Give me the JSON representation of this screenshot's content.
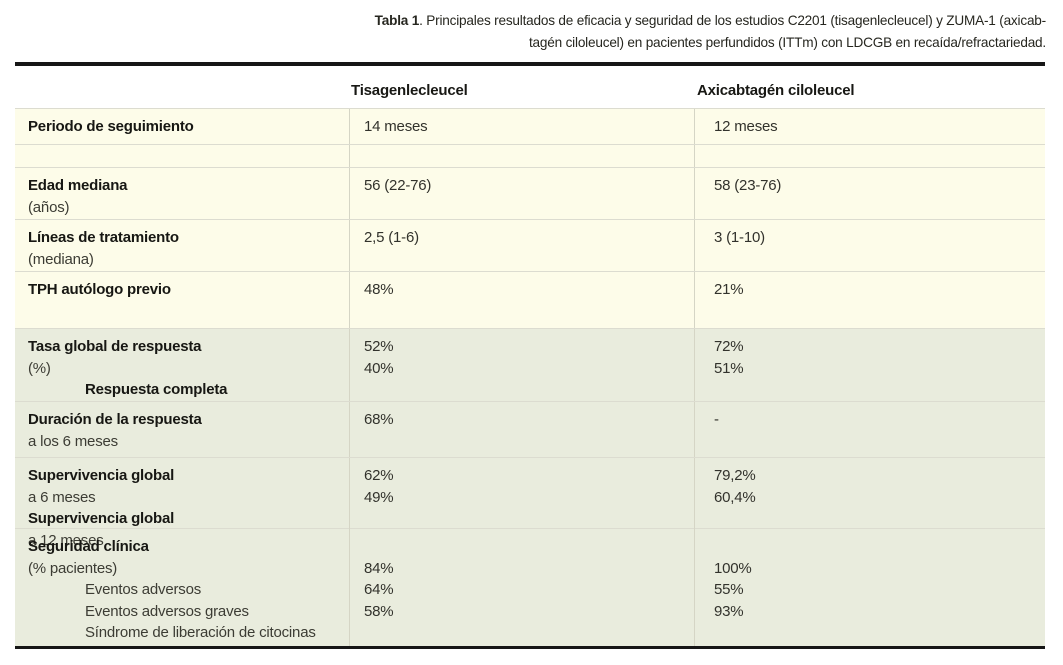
{
  "title": {
    "label": "Tabla 1",
    "line1_rest": ". Principales resultados de eficacia y seguridad de los estudios C2201 (tisagenlecleucel) y ZUMA-1 (axicab-",
    "line2": "tagén ciloleucel) en pacientes perfundidos (ITTm) con LDCGB en recaída/refractariedad."
  },
  "colors": {
    "cream": "#fdfce9",
    "green": "#e9ecdd",
    "sep": "#dcdcd0",
    "divider": "#d5d5c5",
    "border_dark": "#161616"
  },
  "table": {
    "headers": [
      "Tisagenlecleucel",
      "Axicabtagén ciloleucel"
    ],
    "rows": [
      {
        "label_lines": [
          {
            "indent": false,
            "segments": [
              {
                "text": "Periodo de seguimiento",
                "bold": true
              }
            ]
          }
        ],
        "tisagenlecleucel": [
          "14 meses"
        ],
        "axicabtagen": [
          "12 meses"
        ]
      },
      {
        "label_lines": [],
        "tisagenlecleucel": [],
        "axicabtagen": []
      },
      {
        "label_lines": [
          {
            "indent": false,
            "segments": [
              {
                "text": "Edad mediana",
                "bold": true
              },
              {
                "text": " (años)",
                "bold": false
              }
            ]
          }
        ],
        "tisagenlecleucel": [
          "56 (22-76)"
        ],
        "axicabtagen": [
          "58 (23-76)"
        ]
      },
      {
        "label_lines": [
          {
            "indent": false,
            "segments": [
              {
                "text": "Líneas de tratamiento",
                "bold": true
              },
              {
                "text": " (mediana)",
                "bold": false
              }
            ]
          }
        ],
        "tisagenlecleucel": [
          "2,5 (1-6)"
        ],
        "axicabtagen": [
          "3 (1-10)"
        ]
      },
      {
        "label_lines": [
          {
            "indent": false,
            "segments": [
              {
                "text": "TPH autólogo previo",
                "bold": true
              }
            ]
          }
        ],
        "tisagenlecleucel": [
          "48%"
        ],
        "axicabtagen": [
          "21%"
        ]
      },
      {
        "label_lines": [
          {
            "indent": false,
            "segments": [
              {
                "text": "Tasa global de respuesta",
                "bold": true
              },
              {
                "text": " (%)",
                "bold": false
              }
            ]
          },
          {
            "indent": true,
            "segments": [
              {
                "text": "Respuesta completa",
                "bold": true
              }
            ]
          }
        ],
        "tisagenlecleucel": [
          "52%",
          "40%"
        ],
        "axicabtagen": [
          "72%",
          "51%"
        ]
      },
      {
        "label_lines": [
          {
            "indent": false,
            "segments": [
              {
                "text": "Duración de la respuesta",
                "bold": true
              },
              {
                "text": " a los 6 meses",
                "bold": false
              }
            ]
          }
        ],
        "tisagenlecleucel": [
          "68%"
        ],
        "axicabtagen": [
          "-"
        ]
      },
      {
        "label_lines": [
          {
            "indent": false,
            "segments": [
              {
                "text": "Supervivencia global",
                "bold": true
              },
              {
                "text": " a 6 meses",
                "bold": false
              }
            ]
          },
          {
            "indent": false,
            "segments": [
              {
                "text": "Supervivencia global",
                "bold": true
              },
              {
                "text": " a 12 meses",
                "bold": false
              }
            ]
          }
        ],
        "tisagenlecleucel": [
          "62%",
          "49%"
        ],
        "axicabtagen": [
          "79,2%",
          "60,4%"
        ]
      },
      {
        "label_lines": [
          {
            "indent": false,
            "segments": [
              {
                "text": "Seguridad clínica",
                "bold": true
              },
              {
                "text": " (% pacientes)",
                "bold": false
              }
            ]
          },
          {
            "indent": true,
            "segments": [
              {
                "text": "Eventos adversos",
                "bold": false
              }
            ]
          },
          {
            "indent": true,
            "segments": [
              {
                "text": "Eventos adversos graves",
                "bold": false
              }
            ]
          },
          {
            "indent": true,
            "segments": [
              {
                "text": "Síndrome de liberación de citocinas",
                "bold": false
              }
            ]
          }
        ],
        "tisagenlecleucel": [
          "",
          "84%",
          "64%",
          "58%"
        ],
        "axicabtagen": [
          "",
          "100%",
          "55%",
          "93%"
        ]
      }
    ]
  },
  "chart_data": {
    "type": "table",
    "title": "Tabla 1. Principales resultados de eficacia y seguridad de los estudios C2201 (tisagenlecleucel) y ZUMA-1 (axicabtagén ciloleucel) en pacientes perfundidos (ITTm) con LDCGB en recaída/refractariedad.",
    "columns": [
      "",
      "Tisagenlecleucel",
      "Axicabtagén ciloleucel"
    ],
    "rows": [
      [
        "Periodo de seguimiento",
        "14 meses",
        "12 meses"
      ],
      [
        "Edad mediana (años)",
        "56 (22-76)",
        "58 (23-76)"
      ],
      [
        "Líneas de tratamiento (mediana)",
        "2,5 (1-6)",
        "3 (1-10)"
      ],
      [
        "TPH autólogo previo",
        "48%",
        "21%"
      ],
      [
        "Tasa global de respuesta (%)",
        "52%",
        "72%"
      ],
      [
        "Respuesta completa",
        "40%",
        "51%"
      ],
      [
        "Duración de la respuesta a los 6 meses",
        "68%",
        "-"
      ],
      [
        "Supervivencia global a 6 meses",
        "62%",
        "79,2%"
      ],
      [
        "Supervivencia global a 12 meses",
        "49%",
        "60,4%"
      ],
      [
        "Seguridad clínica (% pacientes): Eventos adversos",
        "84%",
        "100%"
      ],
      [
        "Seguridad clínica (% pacientes): Eventos adversos graves",
        "64%",
        "55%"
      ],
      [
        "Seguridad clínica (% pacientes): Síndrome de liberación de citocinas",
        "58%",
        "93%"
      ]
    ]
  }
}
